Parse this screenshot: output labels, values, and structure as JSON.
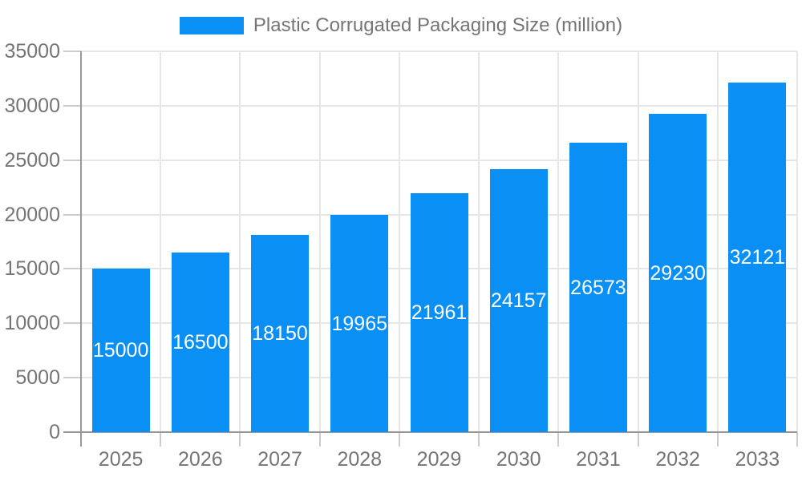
{
  "legend": {
    "label": "Plastic Corrugated Packaging Size (million)"
  },
  "chart_data": {
    "type": "bar",
    "title": "Plastic Corrugated Packaging Size (million)",
    "series_name": "Plastic Corrugated Packaging Size (million)",
    "categories": [
      "2025",
      "2026",
      "2027",
      "2028",
      "2029",
      "2030",
      "2031",
      "2032",
      "2033"
    ],
    "values": [
      15000,
      16500,
      18150,
      19965,
      21961,
      24157,
      26573,
      29230,
      32121
    ],
    "xlabel": "",
    "ylabel": "",
    "ylim": [
      0,
      35000
    ],
    "yticks": [
      0,
      5000,
      10000,
      15000,
      20000,
      25000,
      30000,
      35000
    ],
    "grid": true,
    "legend_position": "top-center",
    "value_labels": "inside-center",
    "colors": {
      "bar": "#0a8ff5",
      "value_label": "#ffffff",
      "axis_label": "#757575",
      "legend_text": "#757575",
      "gridline": "#e6e6e6",
      "tick": "#cccccc",
      "axis_line": "#999999",
      "background": "#ffffff"
    }
  }
}
